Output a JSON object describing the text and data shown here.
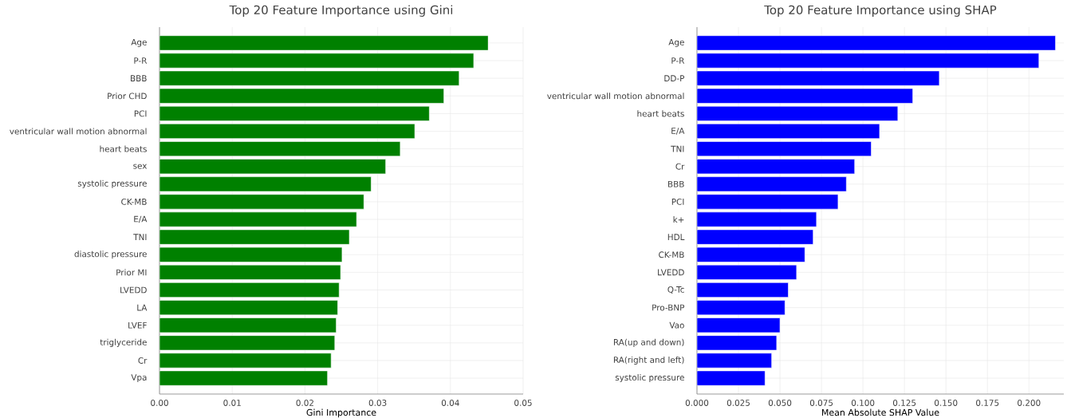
{
  "chart_data": [
    {
      "type": "bar",
      "orientation": "horizontal",
      "title": "Top 20 Feature Importance using Gini",
      "xlabel": "Gini Importance",
      "categories": [
        "Age",
        "P-R",
        "BBB",
        "Prior CHD",
        "PCI",
        "ventricular wall motion abnormal",
        "heart beats",
        "sex",
        "systolic pressure",
        "CK-MB",
        "E/A",
        "TNI",
        "diastolic pressure",
        "Prior MI",
        "LVEDD",
        "LA",
        "LVEF",
        "triglyceride",
        "Cr",
        "Vpa"
      ],
      "values": [
        0.0452,
        0.0432,
        0.0412,
        0.0391,
        0.0371,
        0.0351,
        0.0331,
        0.0311,
        0.0291,
        0.0281,
        0.0271,
        0.0261,
        0.0251,
        0.0249,
        0.0247,
        0.0245,
        0.0243,
        0.0241,
        0.0236,
        0.0231
      ],
      "color": "#008000",
      "xlim": [
        0,
        0.05
      ],
      "xticks": [
        {
          "value": 0,
          "label": "0.00"
        },
        {
          "value": 0.01,
          "label": "0.01"
        },
        {
          "value": 0.02,
          "label": "0.02"
        },
        {
          "value": 0.03,
          "label": "0.03"
        },
        {
          "value": 0.04,
          "label": "0.04"
        },
        {
          "value": 0.05,
          "label": "0.05"
        }
      ],
      "grid": true
    },
    {
      "type": "bar",
      "orientation": "horizontal",
      "title": "Top 20 Feature Importance using SHAP",
      "xlabel": "Mean Absolute SHAP Value",
      "categories": [
        "Age",
        "P-R",
        "DD-P",
        "ventricular wall motion abnormal",
        "heart beats",
        "E/A",
        "TNI",
        "Cr",
        "BBB",
        "PCI",
        "k+",
        "HDL",
        "CK-MB",
        "LVEDD",
        "Q-Tc",
        "Pro-BNP",
        "Vao",
        "RA(up and down)",
        "RA(right and left)",
        "systolic pressure"
      ],
      "values": [
        0.216,
        0.206,
        0.146,
        0.13,
        0.121,
        0.11,
        0.105,
        0.095,
        0.09,
        0.085,
        0.072,
        0.07,
        0.065,
        0.06,
        0.055,
        0.053,
        0.05,
        0.048,
        0.045,
        0.041
      ],
      "color": "#0000ff",
      "xlim": [
        0,
        0.221
      ],
      "xticks": [
        {
          "value": 0,
          "label": "0.000"
        },
        {
          "value": 0.025,
          "label": "0.025"
        },
        {
          "value": 0.05,
          "label": "0.050"
        },
        {
          "value": 0.075,
          "label": "0.075"
        },
        {
          "value": 0.1,
          "label": "0.100"
        },
        {
          "value": 0.125,
          "label": "0.125"
        },
        {
          "value": 0.15,
          "label": "0.150"
        },
        {
          "value": 0.175,
          "label": "0.175"
        },
        {
          "value": 0.2,
          "label": "0.200"
        }
      ],
      "grid": true
    }
  ]
}
